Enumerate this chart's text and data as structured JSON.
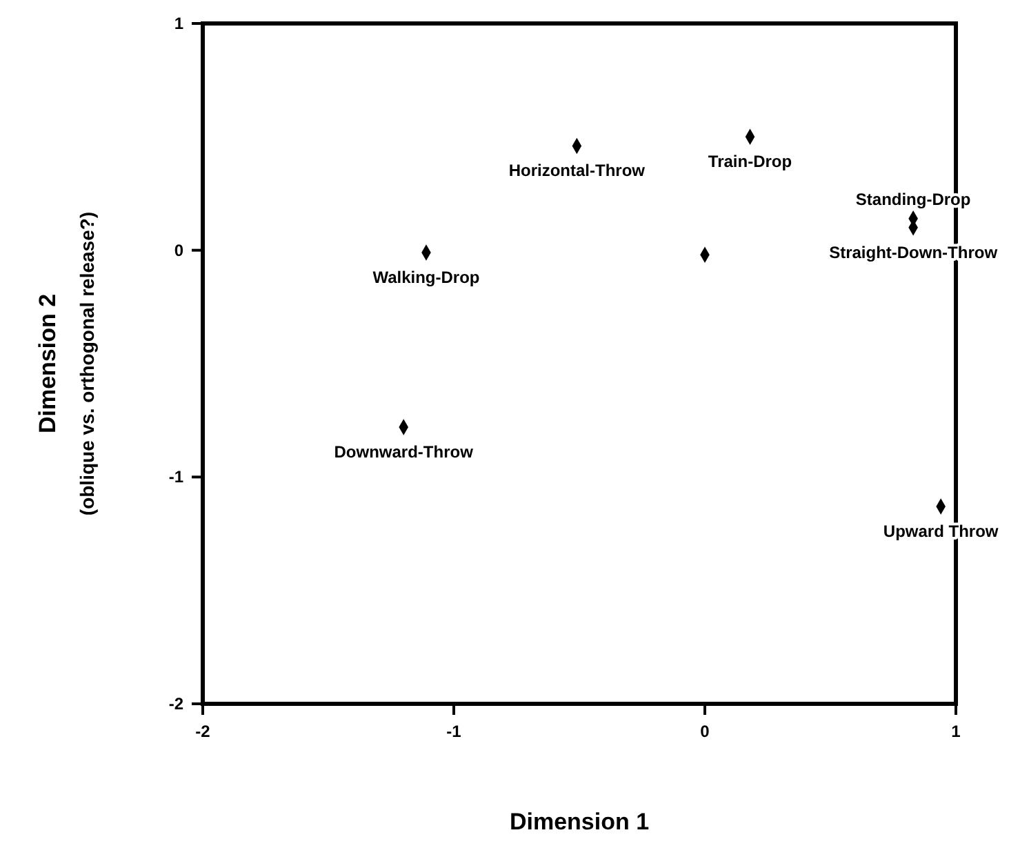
{
  "chart_data": {
    "type": "scatter",
    "xlabel": "Dimension 1",
    "ylabel": "Dimension 2\n(oblique vs. orthogonal release?)",
    "xlim": [
      -2,
      1
    ],
    "ylim": [
      -2,
      1
    ],
    "xticks": [
      -2,
      -1,
      0,
      1
    ],
    "yticks": [
      -2,
      -1,
      0,
      1
    ],
    "grid": false,
    "marker": "diamond",
    "series": [
      {
        "color": "#000000",
        "x": [
          0.18,
          -0.51,
          0.83,
          0.83,
          0,
          -1.11,
          -1.2,
          0.94
        ],
        "values": [
          0.5,
          0.46,
          0.14,
          0.1,
          -0.02,
          -0.01,
          -0.78,
          -1.13
        ]
      }
    ],
    "annotations": [
      {
        "text": "Train-Drop",
        "x": 0.18,
        "y": 0.5
      },
      {
        "text": "Horizontal-Throw",
        "x": -0.51,
        "y": 0.46
      },
      {
        "text": "Standing-Drop",
        "x": 0.83,
        "y": 0.14
      },
      {
        "text": "Straight-Down-Throw",
        "x": 0.83,
        "y": 0.1
      },
      {
        "text": "Walking-Drop",
        "x": -1.11,
        "y": -0.01
      },
      {
        "text": "Downward-Throw",
        "x": -1.2,
        "y": -0.78
      },
      {
        "text": "Upward Throw",
        "x": 0.94,
        "y": -1.13
      }
    ]
  }
}
